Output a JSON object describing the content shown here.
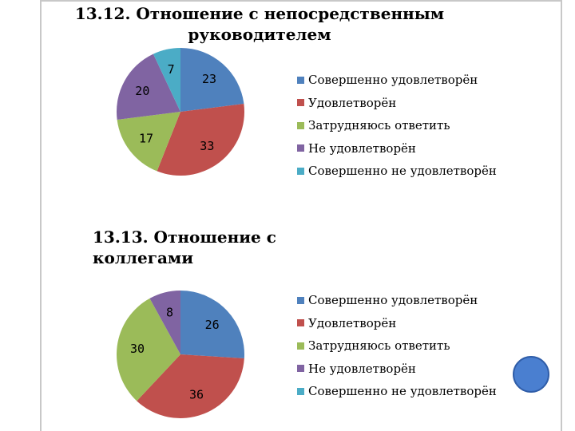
{
  "chart_data": [
    {
      "type": "pie",
      "title": "13.12. Отношение с непосредственным руководителем",
      "categories": [
        "Совершенно удовлетворён",
        "Удовлетворён",
        "Затрудняюсь ответить",
        "Не удовлетворён",
        "Совершенно не удовлетворён"
      ],
      "values": [
        23,
        33,
        17,
        20,
        7
      ],
      "data_labels": [
        "23",
        "33",
        "17",
        "20",
        "7"
      ],
      "colors": [
        "#4f81bd",
        "#c0504d",
        "#9bbb59",
        "#8064a2",
        "#4bacc6"
      ],
      "legend_position": "right"
    },
    {
      "type": "pie",
      "title": "13.13. Отношение с коллегами",
      "categories": [
        "Совершенно удовлетворён",
        "Удовлетворён",
        "Затрудняюсь ответить",
        "Не удовлетворён",
        "Совершенно не удовлетворён"
      ],
      "values": [
        26,
        36,
        30,
        8,
        0
      ],
      "data_labels": [
        "26",
        "36",
        "30",
        "8",
        ""
      ],
      "colors": [
        "#4f81bd",
        "#c0504d",
        "#9bbb59",
        "#8064a2",
        "#4bacc6"
      ],
      "legend_position": "right"
    }
  ]
}
